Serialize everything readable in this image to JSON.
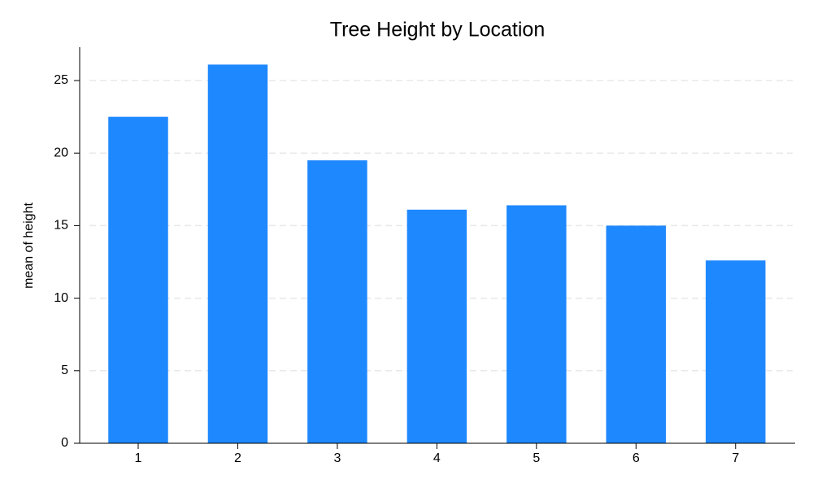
{
  "chart_data": {
    "type": "bar",
    "title": "Tree Height by Location",
    "y_label": "mean of height",
    "categories": [
      "1",
      "2",
      "3",
      "4",
      "5",
      "6",
      "7"
    ],
    "values": [
      22.5,
      26.1,
      19.5,
      16.1,
      16.4,
      15.0,
      12.6
    ],
    "color": "#1e88ff",
    "ylim": [
      0,
      27.3
    ],
    "yticks": [
      0,
      5,
      10,
      15,
      20,
      25
    ],
    "grid": true
  }
}
